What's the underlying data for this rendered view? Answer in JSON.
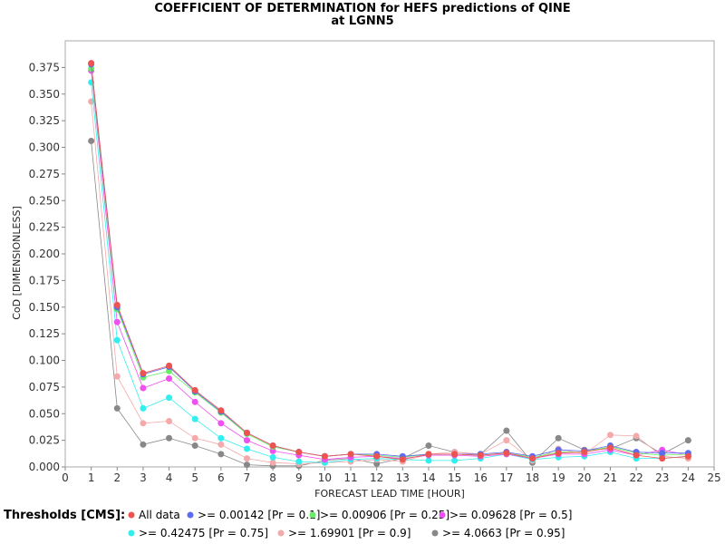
{
  "chart_data": {
    "type": "line",
    "title": "COEFFICIENT OF DETERMINATION for HEFS predictions of QINE",
    "subtitle": "at LGNN5",
    "xlabel": "FORECAST LEAD TIME [HOUR]",
    "ylabel": "CoD [DIMENSIONLESS]",
    "xlim": [
      0,
      25
    ],
    "ylim": [
      0,
      0.4
    ],
    "x_ticks": [
      "0",
      "1",
      "2",
      "3",
      "4",
      "5",
      "6",
      "7",
      "8",
      "9",
      "10",
      "11",
      "12",
      "13",
      "14",
      "15",
      "16",
      "17",
      "18",
      "19",
      "20",
      "21",
      "22",
      "23",
      "24",
      "25"
    ],
    "y_ticks": [
      "0.000",
      "0.025",
      "0.050",
      "0.075",
      "0.100",
      "0.125",
      "0.150",
      "0.175",
      "0.200",
      "0.225",
      "0.250",
      "0.275",
      "0.300",
      "0.325",
      "0.350",
      "0.375"
    ],
    "grid": false,
    "legend_title": "Thresholds [CMS]:",
    "legend_placement": "bottom",
    "x": [
      1,
      2,
      3,
      4,
      5,
      6,
      7,
      8,
      9,
      10,
      11,
      12,
      13,
      14,
      15,
      16,
      17,
      18,
      19,
      20,
      21,
      22,
      23,
      24
    ],
    "series": [
      {
        "name": "All data",
        "color": "#ef5350",
        "values": [
          0.379,
          0.152,
          0.088,
          0.095,
          0.072,
          0.053,
          0.032,
          0.02,
          0.014,
          0.01,
          0.012,
          0.01,
          0.007,
          0.012,
          0.012,
          0.011,
          0.013,
          0.008,
          0.013,
          0.014,
          0.018,
          0.011,
          0.008,
          0.01
        ]
      },
      {
        "name": ">= 0.00142 [Pr = 0.1]",
        "color": "#5c6bf0",
        "values": [
          0.378,
          0.15,
          0.087,
          0.094,
          0.071,
          0.052,
          0.032,
          0.02,
          0.014,
          0.01,
          0.012,
          0.012,
          0.01,
          0.012,
          0.012,
          0.012,
          0.014,
          0.01,
          0.016,
          0.015,
          0.02,
          0.014,
          0.013,
          0.013
        ]
      },
      {
        "name": ">= 0.00906 [Pr = 0.25]",
        "color": "#66ee66",
        "values": [
          0.374,
          0.148,
          0.084,
          0.09,
          0.07,
          0.051,
          0.031,
          0.019,
          0.014,
          0.01,
          0.012,
          0.011,
          0.009,
          0.012,
          0.012,
          0.011,
          0.013,
          0.009,
          0.014,
          0.014,
          0.019,
          0.013,
          0.011,
          0.012
        ]
      },
      {
        "name": ">= 0.09628 [Pr = 0.5]",
        "color": "#f050f0",
        "values": [
          0.372,
          0.136,
          0.074,
          0.083,
          0.061,
          0.041,
          0.025,
          0.015,
          0.011,
          0.007,
          0.009,
          0.01,
          0.008,
          0.011,
          0.011,
          0.01,
          0.012,
          0.008,
          0.012,
          0.012,
          0.016,
          0.011,
          0.016,
          0.011
        ]
      },
      {
        "name": ">= 0.42475 [Pr = 0.75]",
        "color": "#33eeee",
        "values": [
          0.361,
          0.119,
          0.055,
          0.065,
          0.045,
          0.027,
          0.017,
          0.009,
          0.005,
          0.004,
          0.007,
          0.008,
          0.007,
          0.006,
          0.006,
          0.008,
          0.012,
          0.007,
          0.009,
          0.01,
          0.014,
          0.008,
          0.008,
          0.01
        ]
      },
      {
        "name": ">= 1.69901 [Pr = 0.9]",
        "color": "#f4aaaa",
        "values": [
          0.343,
          0.085,
          0.041,
          0.043,
          0.027,
          0.021,
          0.008,
          0.004,
          0.003,
          0.004,
          0.005,
          0.007,
          0.005,
          0.012,
          0.014,
          0.012,
          0.025,
          0.006,
          0.017,
          0.012,
          0.03,
          0.029,
          0.01,
          0.008
        ]
      },
      {
        "name": ">= 4.0663 [Pr = 0.95]",
        "color": "#888888",
        "values": [
          0.306,
          0.055,
          0.021,
          0.027,
          0.02,
          0.012,
          0.002,
          0.001,
          0.001,
          0.006,
          0.008,
          0.003,
          0.008,
          0.02,
          0.014,
          0.012,
          0.034,
          0.004,
          0.027,
          0.016,
          0.017,
          0.027,
          0.012,
          0.025
        ]
      }
    ]
  }
}
